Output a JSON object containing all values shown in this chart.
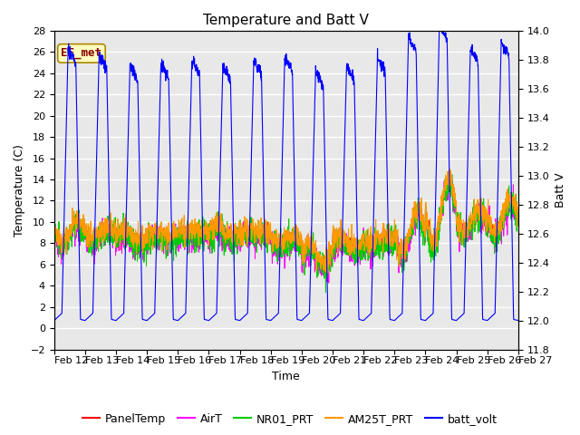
{
  "title": "Temperature and Batt V",
  "xlabel": "Time",
  "ylabel_left": "Temperature (C)",
  "ylabel_right": "Batt V",
  "ylim_left": [
    -2,
    28
  ],
  "ylim_right": [
    11.8,
    14.0
  ],
  "yticks_left": [
    -2,
    0,
    2,
    4,
    6,
    8,
    10,
    12,
    14,
    16,
    18,
    20,
    22,
    24,
    26,
    28
  ],
  "yticks_right": [
    11.8,
    12.0,
    12.2,
    12.4,
    12.6,
    12.8,
    13.0,
    13.2,
    13.4,
    13.6,
    13.8,
    14.0
  ],
  "xtick_labels": [
    "Feb 12",
    "Feb 13",
    "Feb 14",
    "Feb 15",
    "Feb 16",
    "Feb 17",
    "Feb 18",
    "Feb 19",
    "Feb 20",
    "Feb 21",
    "Feb 22",
    "Feb 23",
    "Feb 24",
    "Feb 25",
    "Feb 26",
    "Feb 27"
  ],
  "n_days": 15,
  "n_points_per_day": 144,
  "colors": {
    "PanelTemp": "#ff0000",
    "AirT": "#ff00ff",
    "NR01_PRT": "#00cc00",
    "AM25T_PRT": "#ff9900",
    "batt_volt": "#0000ff"
  },
  "annotation_text": "EE_met",
  "annotation_color": "#8b0000",
  "annotation_bgcolor": "#ffffc0",
  "background_color": "#e8e8e8",
  "grid_color": "#ffffff",
  "title_fontsize": 11,
  "axis_fontsize": 9,
  "tick_fontsize": 8,
  "legend_fontsize": 9
}
